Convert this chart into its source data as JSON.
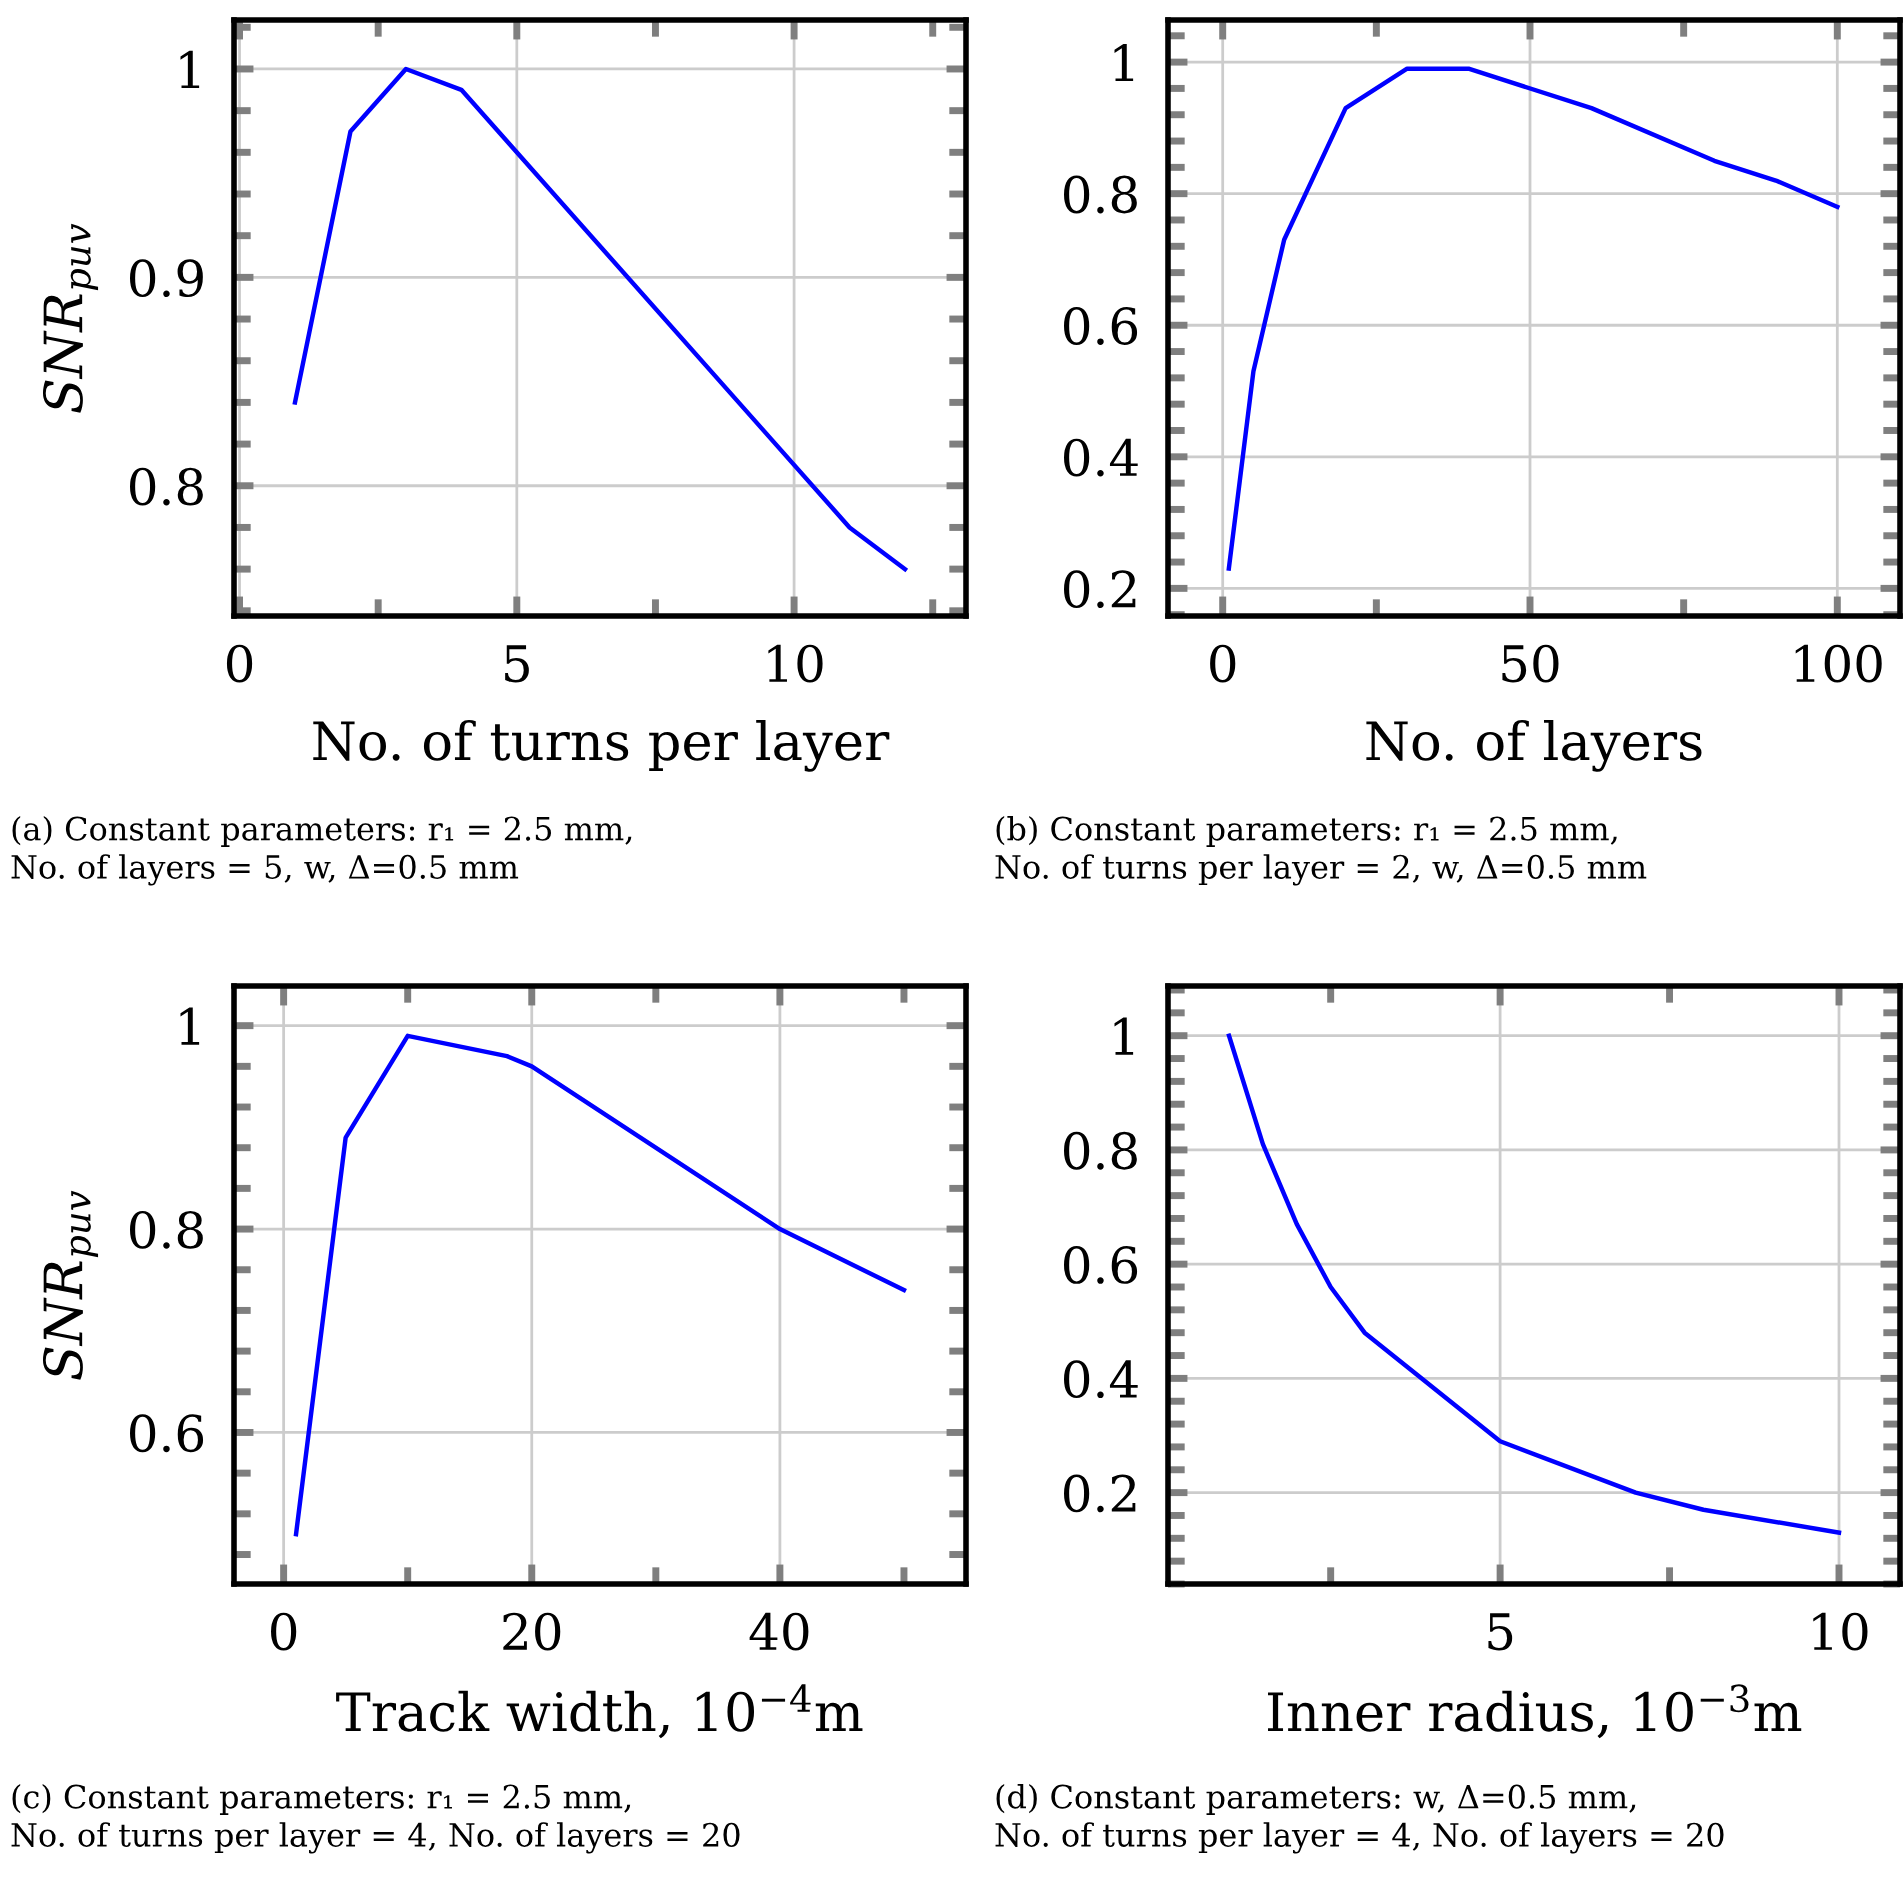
{
  "chart_data": [
    {
      "type": "line",
      "xlabel": "No. of turns per layer",
      "ylabel": "SNR$_{puv}$",
      "grid": true,
      "line_style": "solid",
      "xlim": [
        -0.1,
        13.1
      ],
      "ylim": [
        0.7375,
        1.0235
      ],
      "xticks": [
        0,
        5,
        10
      ],
      "yticks": [
        0.8,
        0.9,
        1
      ],
      "series": [
        {
          "color": "#0000ff",
          "x": [
            1,
            2,
            3,
            4,
            11,
            12
          ],
          "values": [
            0.84,
            0.97,
            1.0,
            0.99,
            0.78,
            0.76
          ]
        }
      ],
      "annotations": [
        "(a) Constant parameters: r₁ = 2.5 mm,\nNo. of layers = 5, w, Δ=0.5 mm"
      ]
    },
    {
      "type": "line",
      "xlabel": "No. of layers",
      "grid": true,
      "line_style": "solid",
      "xlim": [
        -8.9,
        110.2
      ],
      "ylim": [
        0.158,
        1.064
      ],
      "xticks": [
        0,
        50,
        100
      ],
      "yticks": [
        0.2,
        0.4,
        0.6,
        0.8,
        1
      ],
      "series": [
        {
          "color": "#0000ff",
          "x": [
            1,
            5,
            10,
            20,
            30,
            40,
            60,
            80,
            90,
            100
          ],
          "values": [
            0.23,
            0.53,
            0.73,
            0.93,
            0.99,
            0.99,
            0.93,
            0.85,
            0.82,
            0.78
          ]
        }
      ],
      "annotations": [
        "(b) Constant parameters: r₁ = 2.5 mm,\nNo. of turns per layer = 2, w, Δ=0.5 mm"
      ]
    },
    {
      "type": "line",
      "xlabel": "Track width, 10$^{−4}$m",
      "ylabel": "SNR$_{puv}$",
      "grid": true,
      "line_style": "solid",
      "xlim": [
        -4,
        55
      ],
      "ylim": [
        0.451,
        1.039
      ],
      "xticks": [
        0,
        20,
        40
      ],
      "yticks": [
        0.6,
        0.8,
        1
      ],
      "series": [
        {
          "color": "#0000ff",
          "x": [
            1,
            5,
            10,
            18,
            20,
            40,
            50
          ],
          "values": [
            0.5,
            0.89,
            0.99,
            0.97,
            0.96,
            0.8,
            0.74
          ]
        }
      ],
      "annotations": [
        "(c) Constant parameters: r₁ = 2.5 mm,\nNo. of turns per layer = 4, No. of layers = 20"
      ]
    },
    {
      "type": "line",
      "xlabel": "Inner radius, 10$^{−3}$m",
      "grid": true,
      "line_style": "solid",
      "xlim": [
        0.1,
        10.9
      ],
      "ylim": [
        0.04,
        1.087
      ],
      "xticks": [
        5,
        10
      ],
      "yticks": [
        0.2,
        0.4,
        0.6,
        0.8,
        1
      ],
      "series": [
        {
          "color": "#0000ff",
          "x": [
            1,
            1.5,
            2,
            2.5,
            3,
            5,
            7,
            8,
            10
          ],
          "values": [
            1.0,
            0.81,
            0.67,
            0.56,
            0.48,
            0.29,
            0.2,
            0.17,
            0.13
          ]
        }
      ],
      "annotations": [
        "(d) Constant parameters: w, Δ=0.5 mm,\nNo. of turns per layer = 4, No. of layers = 20"
      ]
    }
  ]
}
